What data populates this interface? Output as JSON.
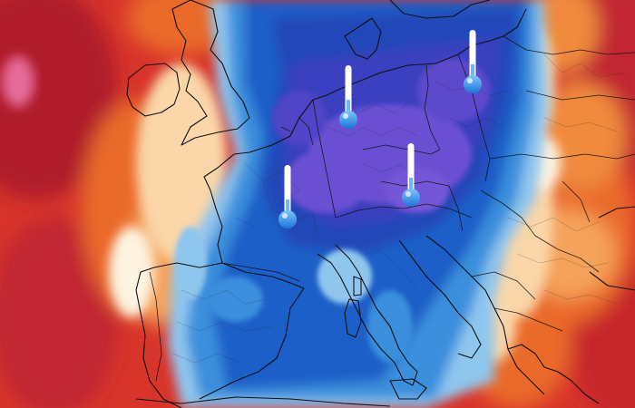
{
  "map": {
    "type": "temperature-anomaly-forecast",
    "region": "Europe",
    "palette": {
      "deep_red": "#b01c2c",
      "red": "#d8342a",
      "orange": "#ea6a2c",
      "light_orange": "#f5a25a",
      "peach": "#fad6a8",
      "cream": "#fdf3e0",
      "light_blue": "#8fc6ee",
      "sky_blue": "#3b8fdc",
      "blue": "#1f5fc8",
      "deep_blue": "#2446b8",
      "indigo": "#3b3fc0",
      "violet": "#6a4fd2",
      "pink_hot": "#e66a9a",
      "border_line": "#111111"
    },
    "markers": [
      {
        "name": "thermometer-spain-france",
        "icon": "cold-thermometer-icon"
      },
      {
        "name": "thermometer-germany-north",
        "icon": "cold-thermometer-icon"
      },
      {
        "name": "thermometer-austria",
        "icon": "cold-thermometer-icon"
      },
      {
        "name": "thermometer-poland",
        "icon": "cold-thermometer-icon"
      }
    ]
  }
}
